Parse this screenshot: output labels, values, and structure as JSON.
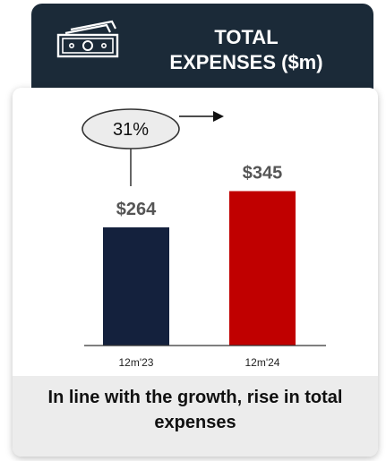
{
  "header": {
    "title": "TOTAL\nEXPENSES ($m)",
    "icon": "money-icon"
  },
  "chart_data": {
    "type": "bar",
    "categories": [
      "12m'23",
      "12m'24"
    ],
    "values": [
      264,
      345
    ],
    "value_labels": [
      "$264",
      "$345"
    ],
    "colors": [
      "#14213d",
      "#c00000"
    ],
    "ylim": [
      0,
      380
    ],
    "annotation": {
      "text": "31%"
    }
  },
  "caption": {
    "text": "In line with the growth, rise in total expenses"
  },
  "colors": {
    "header_bg": "#1b2a38",
    "caption_bg": "#ececec"
  }
}
